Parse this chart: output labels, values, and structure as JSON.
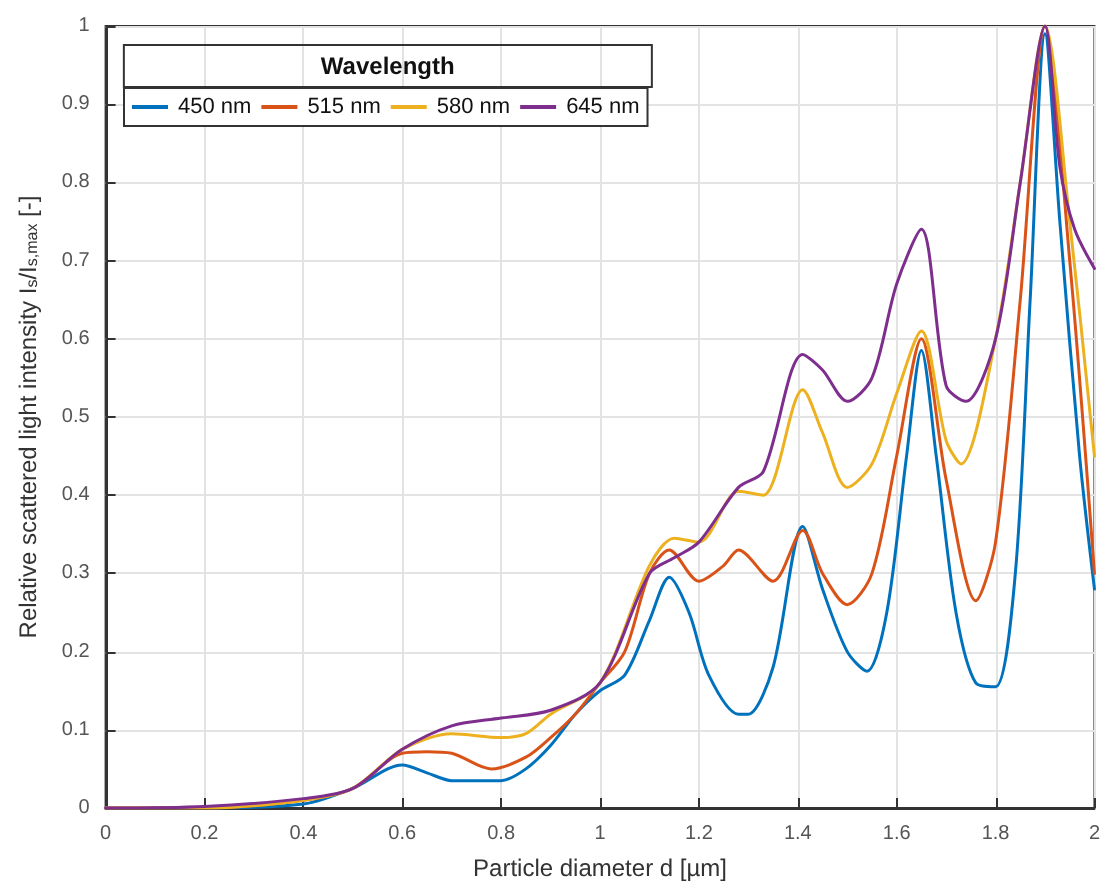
{
  "chart_data": {
    "type": "line",
    "xlabel": "Particle diameter d [µm]",
    "ylabel": "Relative scattered light intensity I$_{s}$/I$_{s,max}$ [-]",
    "legend_title": "Wavelength",
    "legend": "top left",
    "grid": true,
    "xlim": [
      0,
      2
    ],
    "xticks": [
      0,
      0.2,
      0.4,
      0.6,
      0.8,
      1,
      1.2,
      1.4,
      1.6,
      1.8,
      2
    ],
    "ylim": [
      0,
      1
    ],
    "yticks": [
      0,
      0.1,
      0.2,
      0.3,
      0.4,
      0.5,
      0.6,
      0.7,
      0.8,
      0.9,
      1
    ],
    "series": [
      {
        "name": "450 nm",
        "color": "#0072bd",
        "x": [
          0,
          0.2,
          0.4,
          0.5,
          0.6,
          0.65,
          0.7,
          0.8,
          0.85,
          0.9,
          0.95,
          1.0,
          1.05,
          1.1,
          1.14,
          1.18,
          1.22,
          1.28,
          1.3,
          1.35,
          1.41,
          1.45,
          1.5,
          1.54,
          1.58,
          1.62,
          1.65,
          1.68,
          1.72,
          1.76,
          1.8,
          1.84,
          1.87,
          1.9,
          1.93,
          1.97,
          2.0
        ],
        "values": [
          0,
          0,
          0.005,
          0.025,
          0.055,
          0.045,
          0.035,
          0.035,
          0.05,
          0.08,
          0.12,
          0.15,
          0.17,
          0.24,
          0.295,
          0.25,
          0.17,
          0.12,
          0.12,
          0.18,
          0.36,
          0.28,
          0.2,
          0.175,
          0.25,
          0.45,
          0.585,
          0.45,
          0.25,
          0.16,
          0.155,
          0.3,
          0.65,
          0.99,
          0.75,
          0.45,
          0.28
        ]
      },
      {
        "name": "515 nm",
        "color": "#d95319",
        "x": [
          0,
          0.2,
          0.4,
          0.5,
          0.6,
          0.65,
          0.7,
          0.78,
          0.85,
          0.9,
          0.95,
          1.0,
          1.05,
          1.1,
          1.14,
          1.2,
          1.25,
          1.28,
          1.35,
          1.41,
          1.45,
          1.5,
          1.55,
          1.6,
          1.65,
          1.7,
          1.76,
          1.8,
          1.85,
          1.9,
          1.95,
          2.0
        ],
        "values": [
          0,
          0,
          0.01,
          0.025,
          0.07,
          0.072,
          0.07,
          0.05,
          0.065,
          0.09,
          0.12,
          0.16,
          0.2,
          0.3,
          0.33,
          0.29,
          0.31,
          0.33,
          0.29,
          0.355,
          0.3,
          0.26,
          0.3,
          0.45,
          0.6,
          0.42,
          0.265,
          0.34,
          0.65,
          1.0,
          0.7,
          0.3
        ]
      },
      {
        "name": "580 nm",
        "color": "#edb120",
        "x": [
          0,
          0.2,
          0.4,
          0.5,
          0.6,
          0.7,
          0.8,
          0.85,
          0.9,
          1.0,
          1.1,
          1.15,
          1.2,
          1.28,
          1.33,
          1.41,
          1.45,
          1.5,
          1.55,
          1.6,
          1.65,
          1.7,
          1.73,
          1.8,
          1.85,
          1.9,
          1.95,
          2.0
        ],
        "values": [
          0,
          0,
          0.01,
          0.025,
          0.075,
          0.095,
          0.09,
          0.095,
          0.12,
          0.16,
          0.31,
          0.345,
          0.34,
          0.405,
          0.4,
          0.535,
          0.48,
          0.41,
          0.44,
          0.53,
          0.61,
          0.47,
          0.44,
          0.6,
          0.8,
          1.0,
          0.75,
          0.45
        ]
      },
      {
        "name": "645 nm",
        "color": "#7e2f8e",
        "x": [
          0,
          0.2,
          0.4,
          0.5,
          0.6,
          0.7,
          0.8,
          0.9,
          1.0,
          1.1,
          1.15,
          1.2,
          1.28,
          1.33,
          1.41,
          1.45,
          1.5,
          1.55,
          1.6,
          1.65,
          1.7,
          1.74,
          1.8,
          1.85,
          1.9,
          1.93,
          1.96,
          2.0
        ],
        "values": [
          0,
          0.002,
          0.012,
          0.025,
          0.075,
          0.105,
          0.115,
          0.125,
          0.16,
          0.3,
          0.32,
          0.34,
          0.41,
          0.43,
          0.58,
          0.56,
          0.52,
          0.55,
          0.67,
          0.74,
          0.54,
          0.52,
          0.6,
          0.8,
          1.0,
          0.82,
          0.74,
          0.69
        ]
      }
    ]
  }
}
